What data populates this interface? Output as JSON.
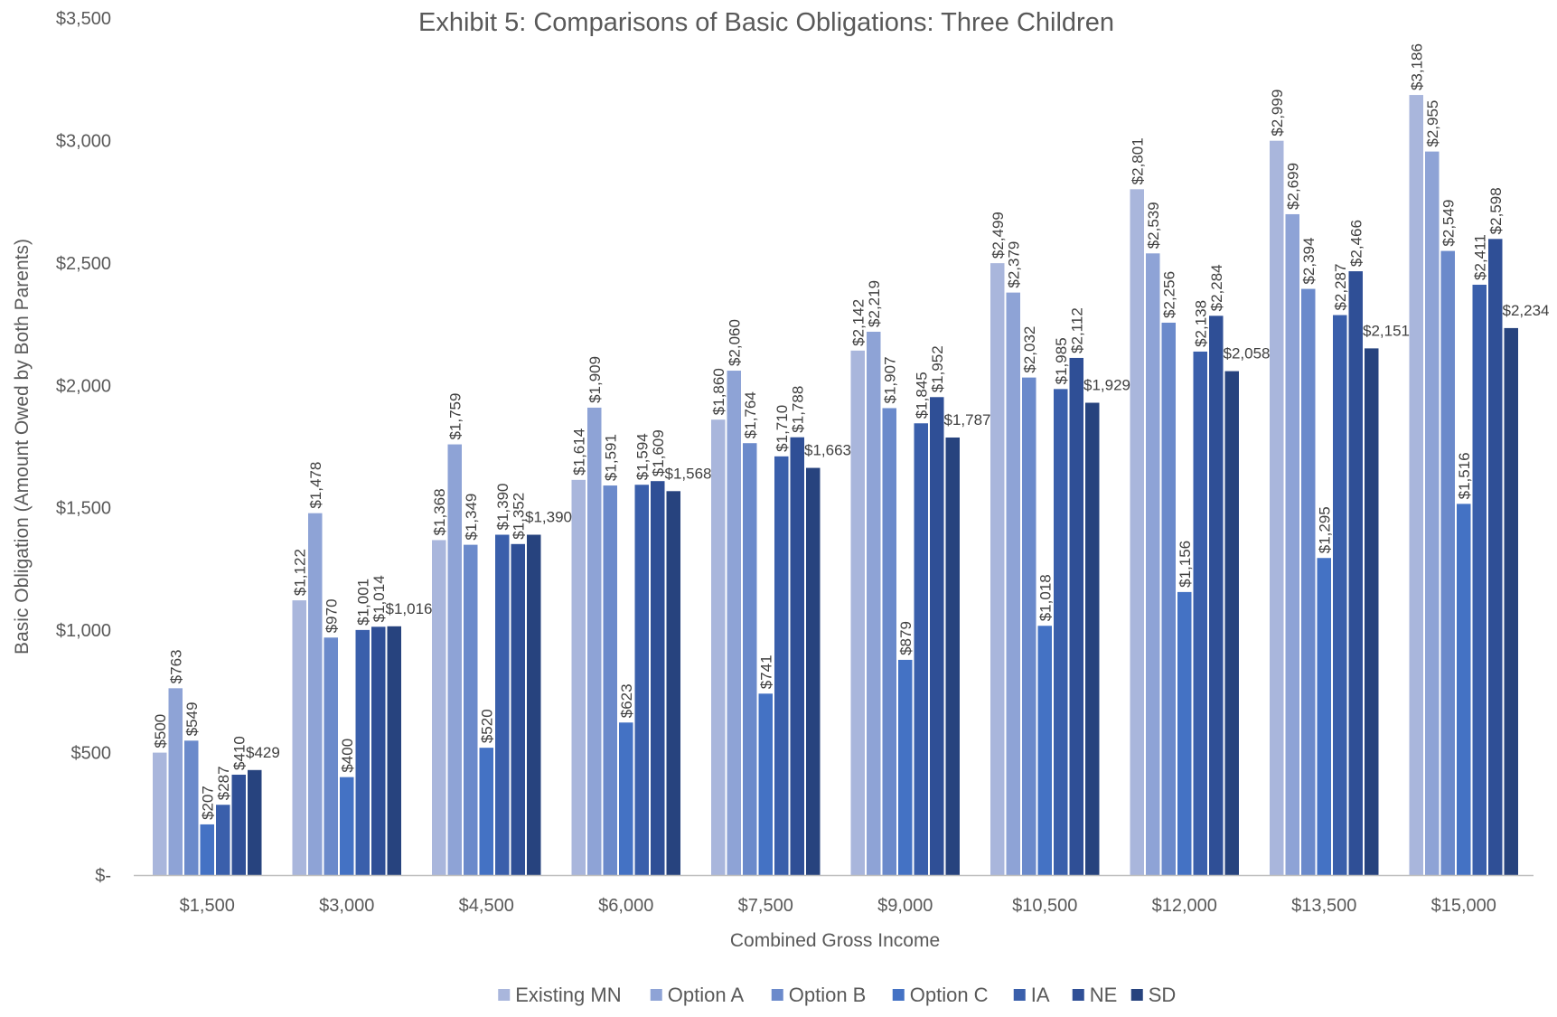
{
  "chart_data": {
    "type": "bar",
    "title": "Exhibit 5: Comparisons of Basic Obligations: Three Children",
    "xlabel": "Combined Gross Income",
    "ylabel": "Basic Obligation (Amount Owed by Both Parents)",
    "ylim": [
      0,
      3500
    ],
    "yticks": [
      0,
      500,
      1000,
      1500,
      2000,
      2500,
      3000,
      3500
    ],
    "ytick_labels": [
      "$-",
      "$500",
      "$1,000",
      "$1,500",
      "$2,000",
      "$2,500",
      "$3,000",
      "$3,500"
    ],
    "grid": false,
    "legend_position": "bottom",
    "categories": [
      "$1,500",
      "$3,000",
      "$4,500",
      "$6,000",
      "$7,500",
      "$9,000",
      "$10,500",
      "$12,000",
      "$13,500",
      "$15,000"
    ],
    "series": [
      {
        "name": "Existing MN",
        "color": "#a9b6dc",
        "values": [
          500,
          1122,
          1368,
          1614,
          1860,
          2142,
          2499,
          2801,
          2999,
          3186
        ],
        "labels": [
          "$500",
          "$1,122",
          "$1,368",
          "$1,614",
          "$1,860",
          "$2,142",
          "$2,499",
          "$2,801",
          "$2,999",
          "$3,186"
        ]
      },
      {
        "name": "Option A",
        "color": "#8ea3d6",
        "values": [
          763,
          1478,
          1759,
          1909,
          2060,
          2219,
          2379,
          2539,
          2699,
          2955
        ],
        "labels": [
          "$763",
          "$1,478",
          "$1,759",
          "$1,909",
          "$2,060",
          "$2,219",
          "$2,379",
          "$2,539",
          "$2,699",
          "$2,955"
        ]
      },
      {
        "name": "Option B",
        "color": "#6b8acb",
        "values": [
          549,
          970,
          1349,
          1591,
          1764,
          1907,
          2032,
          2256,
          2394,
          2549
        ],
        "labels": [
          "$549",
          "$970",
          "$1,349",
          "$1,591",
          "$1,764",
          "$1,907",
          "$2,032",
          "$2,256",
          "$2,394",
          "$2,549"
        ]
      },
      {
        "name": "Option C",
        "color": "#4472c4",
        "values": [
          207,
          400,
          520,
          623,
          741,
          879,
          1018,
          1156,
          1295,
          1516
        ],
        "labels": [
          "$207",
          "$400",
          "$520",
          "$623",
          "$741",
          "$879",
          "$1,018",
          "$1,156",
          "$1,295",
          "$1,516"
        ]
      },
      {
        "name": "IA",
        "color": "#3a5fab",
        "values": [
          287,
          1001,
          1390,
          1594,
          1710,
          1845,
          1985,
          2138,
          2287,
          2411
        ],
        "labels": [
          "$287",
          "$1,001",
          "$1,390",
          "$1,594",
          "$1,710",
          "$1,845",
          "$1,985",
          "$2,138",
          "$2,287",
          "$2,411"
        ]
      },
      {
        "name": "NE",
        "color": "#2f4f96",
        "values": [
          410,
          1014,
          1352,
          1609,
          1788,
          1952,
          2112,
          2284,
          2466,
          2598
        ],
        "labels": [
          "$410",
          "$1,014",
          "$1,352",
          "$1,609",
          "$1,788",
          "$1,952",
          "$2,112",
          "$2,284",
          "$2,466",
          "$2,598"
        ]
      },
      {
        "name": "SD",
        "color": "#27437e",
        "values": [
          429,
          1016,
          1390,
          1568,
          1663,
          1787,
          1929,
          2058,
          2151,
          2234
        ],
        "labels": [
          "$429",
          "$1,016",
          "$1,390",
          "$1,568",
          "$1,663",
          "$1,787",
          "$1,929",
          "$2,058",
          "$2,151",
          "$2,234"
        ]
      }
    ]
  }
}
